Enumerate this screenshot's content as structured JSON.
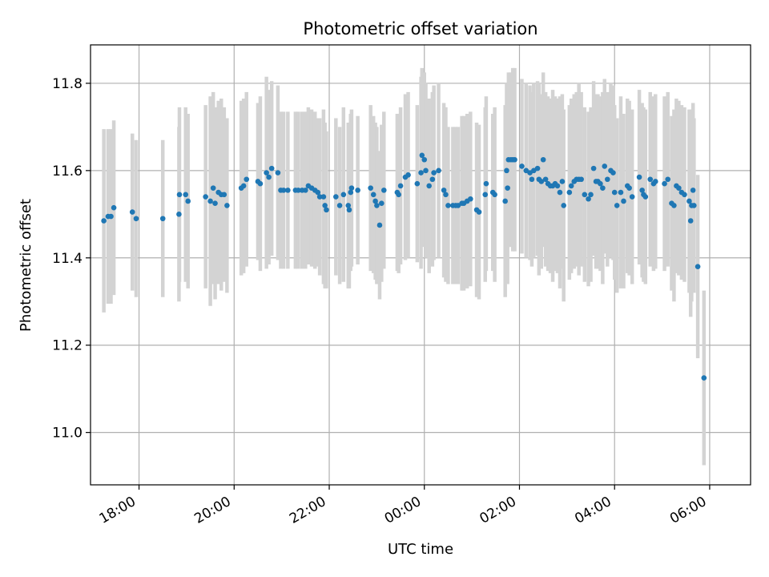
{
  "chart_data": {
    "type": "scatter",
    "title": "Photometric offset variation",
    "xlabel": "UTC time",
    "ylabel": "Photometric offset",
    "grid": true,
    "x_unit": "hours (UTC, continuous across midnight)",
    "xlim": [
      16.98,
      30.86
    ],
    "ylim": [
      10.88,
      11.888
    ],
    "xticks": [
      {
        "value": 18,
        "label": "18:00"
      },
      {
        "value": 20,
        "label": "20:00"
      },
      {
        "value": 22,
        "label": "22:00"
      },
      {
        "value": 24,
        "label": "00:00"
      },
      {
        "value": 26,
        "label": "02:00"
      },
      {
        "value": 28,
        "label": "04:00"
      },
      {
        "value": 30,
        "label": "06:00"
      }
    ],
    "yticks": [
      {
        "value": 11.0,
        "label": "11.0"
      },
      {
        "value": 11.2,
        "label": "11.2"
      },
      {
        "value": 11.4,
        "label": "11.4"
      },
      {
        "value": 11.6,
        "label": "11.6"
      },
      {
        "value": 11.8,
        "label": "11.8"
      }
    ],
    "marker_color": "#1f77b4",
    "errorbar_color": "#d3d3d3",
    "series": [
      {
        "values": [
          [
            17.26,
            11.485,
            0.21
          ],
          [
            17.35,
            11.495,
            0.2
          ],
          [
            17.41,
            11.495,
            0.2
          ],
          [
            17.47,
            11.515,
            0.2
          ],
          [
            17.86,
            11.505,
            0.18
          ],
          [
            17.94,
            11.49,
            0.18
          ],
          [
            18.5,
            11.49,
            0.18
          ],
          [
            18.84,
            11.5,
            0.2
          ],
          [
            18.85,
            11.545,
            0.2
          ],
          [
            18.98,
            11.545,
            0.2
          ],
          [
            19.03,
            11.53,
            0.2
          ],
          [
            19.4,
            11.54,
            0.21
          ],
          [
            19.5,
            11.53,
            0.24
          ],
          [
            19.56,
            11.56,
            0.22
          ],
          [
            19.6,
            11.525,
            0.22
          ],
          [
            19.67,
            11.55,
            0.21
          ],
          [
            19.73,
            11.545,
            0.22
          ],
          [
            19.79,
            11.545,
            0.2
          ],
          [
            19.85,
            11.52,
            0.2
          ],
          [
            20.15,
            11.56,
            0.2
          ],
          [
            20.2,
            11.565,
            0.2
          ],
          [
            20.26,
            11.58,
            0.2
          ],
          [
            20.5,
            11.575,
            0.18
          ],
          [
            20.55,
            11.57,
            0.2
          ],
          [
            20.68,
            11.595,
            0.22
          ],
          [
            20.73,
            11.585,
            0.2
          ],
          [
            20.79,
            11.605,
            0.2
          ],
          [
            20.92,
            11.595,
            0.2
          ],
          [
            20.98,
            11.555,
            0.18
          ],
          [
            21.04,
            11.555,
            0.18
          ],
          [
            21.13,
            11.555,
            0.18
          ],
          [
            21.29,
            11.555,
            0.18
          ],
          [
            21.35,
            11.555,
            0.18
          ],
          [
            21.43,
            11.555,
            0.18
          ],
          [
            21.5,
            11.555,
            0.18
          ],
          [
            21.56,
            11.565,
            0.18
          ],
          [
            21.63,
            11.56,
            0.18
          ],
          [
            21.7,
            11.555,
            0.18
          ],
          [
            21.76,
            11.55,
            0.17
          ],
          [
            21.8,
            11.54,
            0.18
          ],
          [
            21.88,
            11.54,
            0.2
          ],
          [
            21.91,
            11.52,
            0.19
          ],
          [
            21.94,
            11.51,
            0.18
          ],
          [
            22.14,
            11.54,
            0.18
          ],
          [
            22.22,
            11.52,
            0.18
          ],
          [
            22.3,
            11.545,
            0.2
          ],
          [
            22.4,
            11.52,
            0.19
          ],
          [
            22.42,
            11.51,
            0.18
          ],
          [
            22.45,
            11.55,
            0.18
          ],
          [
            22.47,
            11.56,
            0.18
          ],
          [
            22.6,
            11.555,
            0.17
          ],
          [
            22.87,
            11.56,
            0.19
          ],
          [
            22.93,
            11.545,
            0.18
          ],
          [
            22.97,
            11.53,
            0.18
          ],
          [
            23.0,
            11.52,
            0.18
          ],
          [
            23.06,
            11.475,
            0.17
          ],
          [
            23.1,
            11.525,
            0.18
          ],
          [
            23.15,
            11.555,
            0.18
          ],
          [
            23.43,
            11.55,
            0.18
          ],
          [
            23.46,
            11.545,
            0.18
          ],
          [
            23.5,
            11.565,
            0.18
          ],
          [
            23.6,
            11.585,
            0.19
          ],
          [
            23.66,
            11.59,
            0.19
          ],
          [
            23.85,
            11.57,
            0.18
          ],
          [
            23.93,
            11.595,
            0.22
          ],
          [
            23.95,
            11.635,
            0.2
          ],
          [
            24.0,
            11.625,
            0.2
          ],
          [
            24.03,
            11.6,
            0.2
          ],
          [
            24.1,
            11.565,
            0.2
          ],
          [
            24.17,
            11.58,
            0.2
          ],
          [
            24.2,
            11.595,
            0.2
          ],
          [
            24.3,
            11.6,
            0.2
          ],
          [
            24.41,
            11.555,
            0.2
          ],
          [
            24.45,
            11.545,
            0.2
          ],
          [
            24.5,
            11.52,
            0.18
          ],
          [
            24.6,
            11.52,
            0.18
          ],
          [
            24.66,
            11.52,
            0.18
          ],
          [
            24.71,
            11.52,
            0.18
          ],
          [
            24.79,
            11.525,
            0.2
          ],
          [
            24.83,
            11.525,
            0.2
          ],
          [
            24.9,
            11.53,
            0.2
          ],
          [
            24.97,
            11.535,
            0.2
          ],
          [
            25.1,
            11.51,
            0.2
          ],
          [
            25.15,
            11.505,
            0.2
          ],
          [
            25.28,
            11.545,
            0.2
          ],
          [
            25.3,
            11.57,
            0.2
          ],
          [
            25.44,
            11.55,
            0.18
          ],
          [
            25.48,
            11.545,
            0.2
          ],
          [
            25.73,
            11.6,
            0.2
          ],
          [
            25.77,
            11.625,
            0.2
          ],
          [
            25.82,
            11.625,
            0.2
          ],
          [
            25.86,
            11.625,
            0.21
          ],
          [
            25.9,
            11.625,
            0.21
          ],
          [
            25.7,
            11.53,
            0.22
          ],
          [
            25.75,
            11.56,
            0.22
          ],
          [
            26.05,
            11.61,
            0.2
          ],
          [
            26.14,
            11.6,
            0.2
          ],
          [
            26.22,
            11.595,
            0.2
          ],
          [
            26.26,
            11.58,
            0.2
          ],
          [
            26.3,
            11.6,
            0.2
          ],
          [
            26.38,
            11.605,
            0.2
          ],
          [
            26.41,
            11.58,
            0.22
          ],
          [
            26.46,
            11.575,
            0.2
          ],
          [
            26.5,
            11.625,
            0.2
          ],
          [
            26.55,
            11.58,
            0.2
          ],
          [
            26.6,
            11.57,
            0.2
          ],
          [
            26.65,
            11.565,
            0.2
          ],
          [
            26.7,
            11.565,
            0.22
          ],
          [
            26.75,
            11.57,
            0.2
          ],
          [
            26.8,
            11.565,
            0.2
          ],
          [
            26.85,
            11.55,
            0.22
          ],
          [
            26.9,
            11.575,
            0.2
          ],
          [
            26.93,
            11.52,
            0.22
          ],
          [
            27.05,
            11.55,
            0.2
          ],
          [
            27.09,
            11.565,
            0.2
          ],
          [
            27.15,
            11.575,
            0.2
          ],
          [
            27.2,
            11.58,
            0.2
          ],
          [
            27.25,
            11.58,
            0.22
          ],
          [
            27.3,
            11.58,
            0.2
          ],
          [
            27.37,
            11.545,
            0.2
          ],
          [
            27.45,
            11.535,
            0.2
          ],
          [
            27.5,
            11.545,
            0.2
          ],
          [
            27.56,
            11.605,
            0.2
          ],
          [
            27.61,
            11.575,
            0.2
          ],
          [
            27.65,
            11.575,
            0.2
          ],
          [
            27.7,
            11.57,
            0.2
          ],
          [
            27.75,
            11.56,
            0.22
          ],
          [
            27.79,
            11.61,
            0.2
          ],
          [
            27.85,
            11.58,
            0.2
          ],
          [
            27.92,
            11.6,
            0.2
          ],
          [
            27.97,
            11.595,
            0.2
          ],
          [
            28.0,
            11.55,
            0.2
          ],
          [
            28.05,
            11.52,
            0.2
          ],
          [
            28.13,
            11.55,
            0.22
          ],
          [
            28.19,
            11.53,
            0.2
          ],
          [
            28.27,
            11.565,
            0.2
          ],
          [
            28.31,
            11.56,
            0.2
          ],
          [
            28.37,
            11.54,
            0.2
          ],
          [
            28.52,
            11.585,
            0.2
          ],
          [
            28.58,
            11.555,
            0.2
          ],
          [
            28.61,
            11.545,
            0.2
          ],
          [
            28.65,
            11.54,
            0.2
          ],
          [
            28.75,
            11.58,
            0.2
          ],
          [
            28.82,
            11.57,
            0.2
          ],
          [
            28.86,
            11.575,
            0.2
          ],
          [
            29.05,
            11.57,
            0.2
          ],
          [
            29.12,
            11.58,
            0.2
          ],
          [
            29.2,
            11.525,
            0.2
          ],
          [
            29.25,
            11.52,
            0.22
          ],
          [
            29.3,
            11.565,
            0.2
          ],
          [
            29.35,
            11.56,
            0.2
          ],
          [
            29.41,
            11.55,
            0.2
          ],
          [
            29.47,
            11.545,
            0.2
          ],
          [
            29.57,
            11.53,
            0.21
          ],
          [
            29.6,
            11.485,
            0.22
          ],
          [
            29.62,
            11.52,
            0.22
          ],
          [
            29.65,
            11.555,
            0.2
          ],
          [
            29.67,
            11.52,
            0.2
          ],
          [
            29.75,
            11.38,
            0.21
          ],
          [
            29.88,
            11.125,
            0.2
          ]
        ]
      }
    ]
  }
}
